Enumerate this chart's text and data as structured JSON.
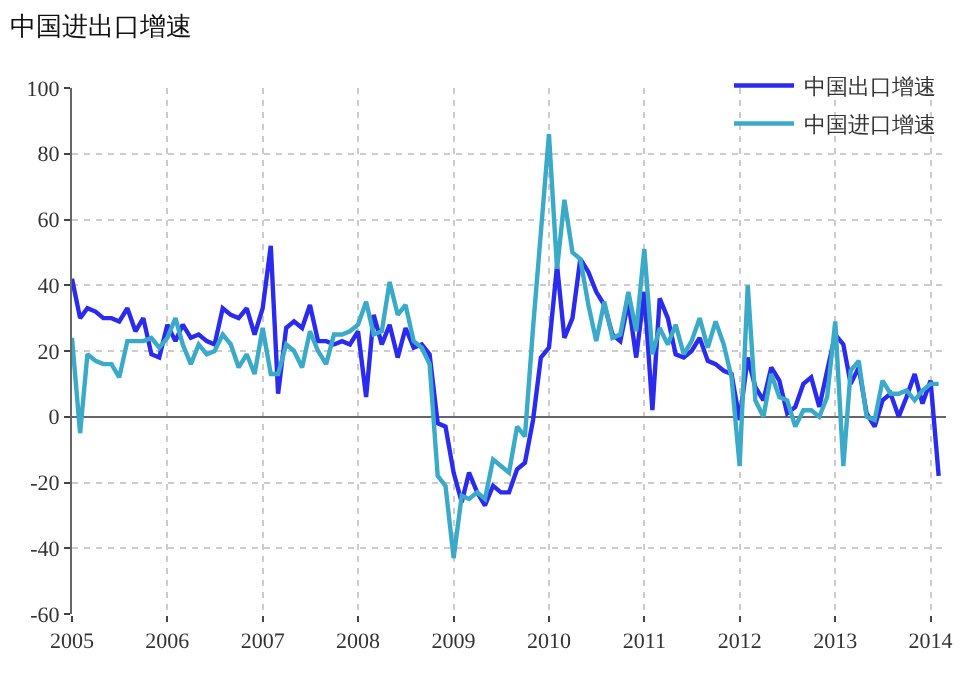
{
  "chart_data": {
    "type": "line",
    "title": "中国进出口增速",
    "x": [
      "2005-01",
      "2005-02",
      "2005-03",
      "2005-04",
      "2005-05",
      "2005-06",
      "2005-07",
      "2005-08",
      "2005-09",
      "2005-10",
      "2005-11",
      "2005-12",
      "2006-01",
      "2006-02",
      "2006-03",
      "2006-04",
      "2006-05",
      "2006-06",
      "2006-07",
      "2006-08",
      "2006-09",
      "2006-10",
      "2006-11",
      "2006-12",
      "2007-01",
      "2007-02",
      "2007-03",
      "2007-04",
      "2007-05",
      "2007-06",
      "2007-07",
      "2007-08",
      "2007-09",
      "2007-10",
      "2007-11",
      "2007-12",
      "2008-01",
      "2008-02",
      "2008-03",
      "2008-04",
      "2008-05",
      "2008-06",
      "2008-07",
      "2008-08",
      "2008-09",
      "2008-10",
      "2008-11",
      "2008-12",
      "2009-01",
      "2009-02",
      "2009-03",
      "2009-04",
      "2009-05",
      "2009-06",
      "2009-07",
      "2009-08",
      "2009-09",
      "2009-10",
      "2009-11",
      "2009-12",
      "2010-01",
      "2010-02",
      "2010-03",
      "2010-04",
      "2010-05",
      "2010-06",
      "2010-07",
      "2010-08",
      "2010-09",
      "2010-10",
      "2010-11",
      "2010-12",
      "2011-01",
      "2011-02",
      "2011-03",
      "2011-04",
      "2011-05",
      "2011-06",
      "2011-07",
      "2011-08",
      "2011-09",
      "2011-10",
      "2011-11",
      "2011-12",
      "2012-01",
      "2012-02",
      "2012-03",
      "2012-04",
      "2012-05",
      "2012-06",
      "2012-07",
      "2012-08",
      "2012-09",
      "2012-10",
      "2012-11",
      "2012-12",
      "2013-01",
      "2013-02",
      "2013-03",
      "2013-04",
      "2013-05",
      "2013-06",
      "2013-07",
      "2013-08",
      "2013-09",
      "2013-10",
      "2013-11",
      "2013-12",
      "2014-01",
      "2014-02"
    ],
    "series": [
      {
        "name": "中国出口增速",
        "color": "#2b2bf0",
        "values": [
          42,
          30,
          33,
          32,
          30,
          30,
          29,
          33,
          26,
          30,
          19,
          18,
          28,
          23,
          28,
          24,
          25,
          23,
          22,
          33,
          31,
          30,
          33,
          25,
          33,
          52,
          7,
          27,
          29,
          27,
          34,
          23,
          23,
          22,
          23,
          22,
          26,
          6,
          31,
          22,
          28,
          18,
          27,
          21,
          22,
          19,
          -2,
          -3,
          -17,
          -26,
          -17,
          -23,
          -27,
          -21,
          -23,
          -23,
          -16,
          -14,
          -1,
          18,
          21,
          46,
          24,
          30,
          48,
          44,
          38,
          34,
          25,
          23,
          35,
          18,
          38,
          2,
          36,
          30,
          19,
          18,
          20,
          24,
          17,
          16,
          14,
          13,
          -1,
          18,
          9,
          5,
          15,
          11,
          1,
          3,
          10,
          12,
          3,
          14,
          25,
          22,
          10,
          15,
          1,
          -3,
          5,
          7,
          0,
          6,
          13,
          4,
          11,
          -18
        ]
      },
      {
        "name": "中国进口增速",
        "color": "#3aaac8",
        "values": [
          24,
          -5,
          19,
          17,
          16,
          16,
          12,
          23,
          23,
          23,
          24,
          21,
          24,
          30,
          22,
          16,
          22,
          19,
          20,
          25,
          22,
          15,
          19,
          13,
          27,
          13,
          13,
          22,
          20,
          15,
          26,
          20,
          16,
          25,
          25,
          26,
          28,
          35,
          25,
          26,
          41,
          31,
          34,
          23,
          21,
          16,
          -18,
          -21,
          -43,
          -24,
          -25,
          -23,
          -25,
          -13,
          -15,
          -17,
          -3,
          -6,
          27,
          56,
          86,
          45,
          66,
          50,
          48,
          34,
          23,
          35,
          24,
          25,
          38,
          26,
          51,
          19,
          27,
          22,
          28,
          19,
          23,
          30,
          21,
          29,
          22,
          12,
          -15,
          40,
          5,
          0,
          13,
          6,
          5,
          -3,
          2,
          2,
          0,
          6,
          29,
          -15,
          14,
          17,
          0,
          -1,
          11,
          7,
          7,
          8,
          5,
          8,
          10,
          10
        ]
      }
    ],
    "xlim": [
      "2005-01",
      "2014-03"
    ],
    "xticks": [
      "2005",
      "2006",
      "2007",
      "2008",
      "2009",
      "2010",
      "2011",
      "2012",
      "2013",
      "2014"
    ],
    "ylim": [
      -60,
      100
    ],
    "yticks": [
      -60,
      -40,
      -20,
      0,
      20,
      40,
      60,
      80,
      100
    ],
    "grid": true,
    "legend": "top right",
    "marker": "none",
    "line_style": "solid"
  }
}
